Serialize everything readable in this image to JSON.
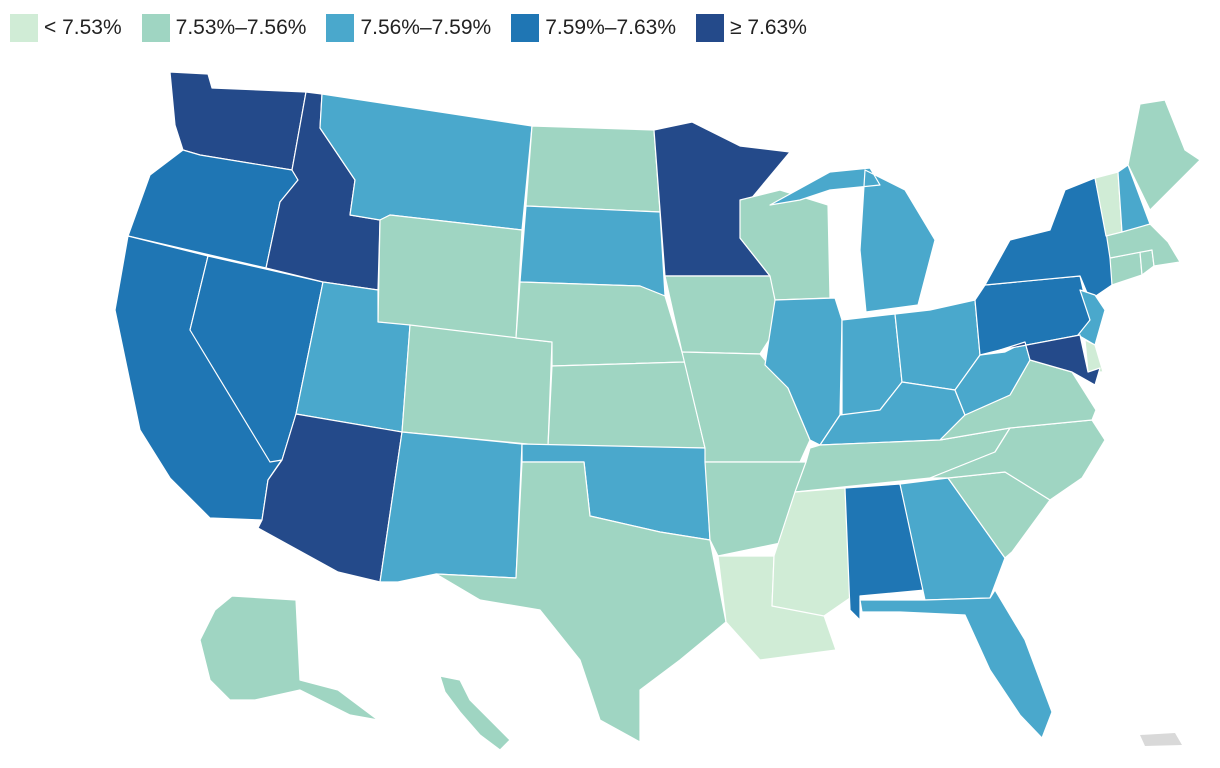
{
  "legend": {
    "bins": [
      {
        "label": "< 7.53%",
        "color": "#d0ecd6"
      },
      {
        "label": "7.53%–7.56%",
        "color": "#9fd5c2"
      },
      {
        "label": "7.56%–7.59%",
        "color": "#4aa8cc"
      },
      {
        "label": "7.59%–7.63%",
        "color": "#1f76b4"
      },
      {
        "label": "≥ 7.63%",
        "color": "#244a8a"
      }
    ]
  },
  "no_data_color": "#d9d9d9",
  "states": {
    "WA": 4,
    "OR": 3,
    "CA": 3,
    "NV": 3,
    "ID": 4,
    "MT": 2,
    "WY": 1,
    "UT": 2,
    "AZ": 4,
    "NM": 2,
    "CO": 1,
    "ND": 1,
    "SD": 2,
    "NE": 1,
    "KS": 1,
    "OK": 2,
    "TX": 1,
    "MN": 4,
    "IA": 1,
    "MO": 1,
    "AR": 1,
    "LA": 0,
    "WI": 1,
    "IL": 2,
    "MI": 2,
    "IN": 2,
    "OH": 2,
    "KY": 2,
    "TN": 1,
    "MS": 0,
    "AL": 3,
    "GA": 2,
    "FL": 2,
    "SC": 1,
    "NC": 1,
    "VA": 1,
    "WV": 2,
    "PA": 3,
    "NY": 3,
    "NJ": 2,
    "DE": 0,
    "MD": 4,
    "CT": 1,
    "RI": 1,
    "MA": 1,
    "VT": 0,
    "NH": 2,
    "ME": 1,
    "AK": 1,
    "HI": 1,
    "PR": -1
  }
}
